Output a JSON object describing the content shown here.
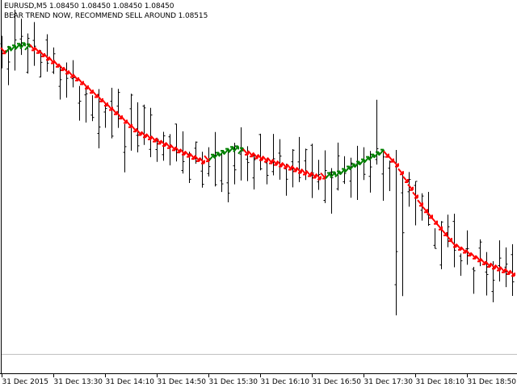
{
  "header": {
    "symbol_line": "EURUSD,M5  1.08450 1.08450 1.08450 1.08450",
    "signal_text": "BEAR TREND NOW, RECOMMEND SELL AROUND 1.08515"
  },
  "colors": {
    "background": "#ffffff",
    "bars": "#000000",
    "bear_arrow": "#ff0000",
    "bull_arrow": "#008000",
    "level_line": "#c0c0c0"
  },
  "chart_data": {
    "type": "bar",
    "symbol": "EURUSD",
    "timeframe": "M5",
    "x_tick_labels": [
      "31 Dec 2015",
      "31 Dec 13:30",
      "31 Dec 14:10",
      "31 Dec 14:50",
      "31 Dec 15:30",
      "31 Dec 16:10",
      "31 Dec 16:50",
      "31 Dec 17:30",
      "31 Dec 18:10",
      "31 Dec 18:50"
    ],
    "time_start": "12:50",
    "bar_minutes": 5,
    "bar_count": 80,
    "ylim": [
      1.08419,
      1.08535
    ],
    "level_line_price": 1.08425,
    "trend_path": [
      {
        "time": "12:50",
        "price": 1.08519
      },
      {
        "time": "13:05",
        "price": 1.08521
      },
      {
        "time": "13:15",
        "price": 1.0852
      },
      {
        "time": "13:50",
        "price": 1.0851
      },
      {
        "time": "14:35",
        "price": 1.08494
      },
      {
        "time": "15:25",
        "price": 1.08485
      },
      {
        "time": "15:50",
        "price": 1.08489
      },
      {
        "time": "16:10",
        "price": 1.08486
      },
      {
        "time": "16:55",
        "price": 1.0848
      },
      {
        "time": "17:10",
        "price": 1.08481
      },
      {
        "time": "17:45",
        "price": 1.08488
      },
      {
        "time": "17:55",
        "price": 1.08484
      },
      {
        "time": "18:15",
        "price": 1.08471
      },
      {
        "time": "18:40",
        "price": 1.08459
      },
      {
        "time": "19:05",
        "price": 1.08453
      },
      {
        "time": "19:25",
        "price": 1.0845
      }
    ],
    "bull_ranges": [
      [
        "12:55",
        "13:10"
      ],
      [
        "15:30",
        "15:55"
      ],
      [
        "17:00",
        "17:45"
      ]
    ],
    "extremes": [
      {
        "time": "13:00",
        "high": 1.08532
      },
      {
        "time": "17:40",
        "high": 1.08504
      },
      {
        "time": "17:55",
        "low": 1.08437
      },
      {
        "time": "18:00",
        "low": 1.08443
      }
    ]
  }
}
